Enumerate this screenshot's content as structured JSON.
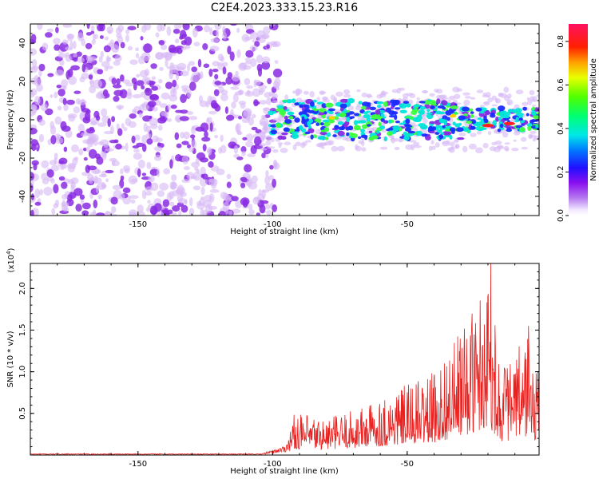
{
  "figure": {
    "title": "C2E4.2023.333.15.23.R16"
  },
  "chart_data": [
    {
      "type": "heatmap",
      "xlabel": "Height of straight line (km)",
      "ylabel": "Frequency (Hz)",
      "xlim": [
        -190,
        -1
      ],
      "ylim": [
        -50,
        50
      ],
      "x_ticks": [
        -150,
        -100,
        -50
      ],
      "y_ticks": [
        -40,
        -20,
        0,
        20,
        40
      ],
      "colorbar": {
        "label": "Normalized spectral amplitude",
        "range": [
          0,
          0.88
        ],
        "ticks": [
          0.0,
          0.2,
          0.4,
          0.6,
          0.8
        ]
      },
      "noise_region_km": [
        -190,
        -98
      ],
      "signal_band_km": [
        -104,
        -1
      ],
      "signal_band_hz": [
        -10,
        10
      ],
      "colors": {
        "noise": "#8a2be2",
        "noise_light": "#d7b8f5",
        "band_low": "#1a2cff",
        "band_mid": "#00e5d8",
        "band_high": "#3cff3c",
        "band_peak": "#ff2020"
      }
    },
    {
      "type": "line",
      "xlabel": "Height of straight line (km)",
      "ylabel": "SNR (10 * v/v)",
      "y_multiplier": "(x10⁴)",
      "xlim": [
        -190,
        -1
      ],
      "ylim": [
        0,
        2.3
      ],
      "x_ticks": [
        -150,
        -100,
        -50
      ],
      "y_ticks": [
        0.5,
        1.0,
        1.5,
        2.0
      ],
      "color": "#e8201e",
      "envelope_points": [
        [
          -190,
          0.01
        ],
        [
          -120,
          0.01
        ],
        [
          -104,
          0.02
        ],
        [
          -100,
          0.06
        ],
        [
          -95,
          0.12
        ],
        [
          -92,
          0.5
        ],
        [
          -80,
          0.45
        ],
        [
          -70,
          0.55
        ],
        [
          -60,
          0.7
        ],
        [
          -50,
          0.85
        ],
        [
          -40,
          1.0
        ],
        [
          -30,
          1.5
        ],
        [
          -25,
          1.8
        ],
        [
          -20,
          2.3
        ],
        [
          -15,
          1.1
        ],
        [
          -10,
          1.2
        ],
        [
          -5,
          1.55
        ],
        [
          -3,
          1.1
        ],
        [
          -1,
          1.0
        ]
      ],
      "peaks": [
        {
          "x": -19,
          "y": 2.3
        },
        {
          "x": -20,
          "y": 1.9
        },
        {
          "x": -26,
          "y": 1.55
        },
        {
          "x": -5,
          "y": 1.55
        }
      ]
    }
  ]
}
